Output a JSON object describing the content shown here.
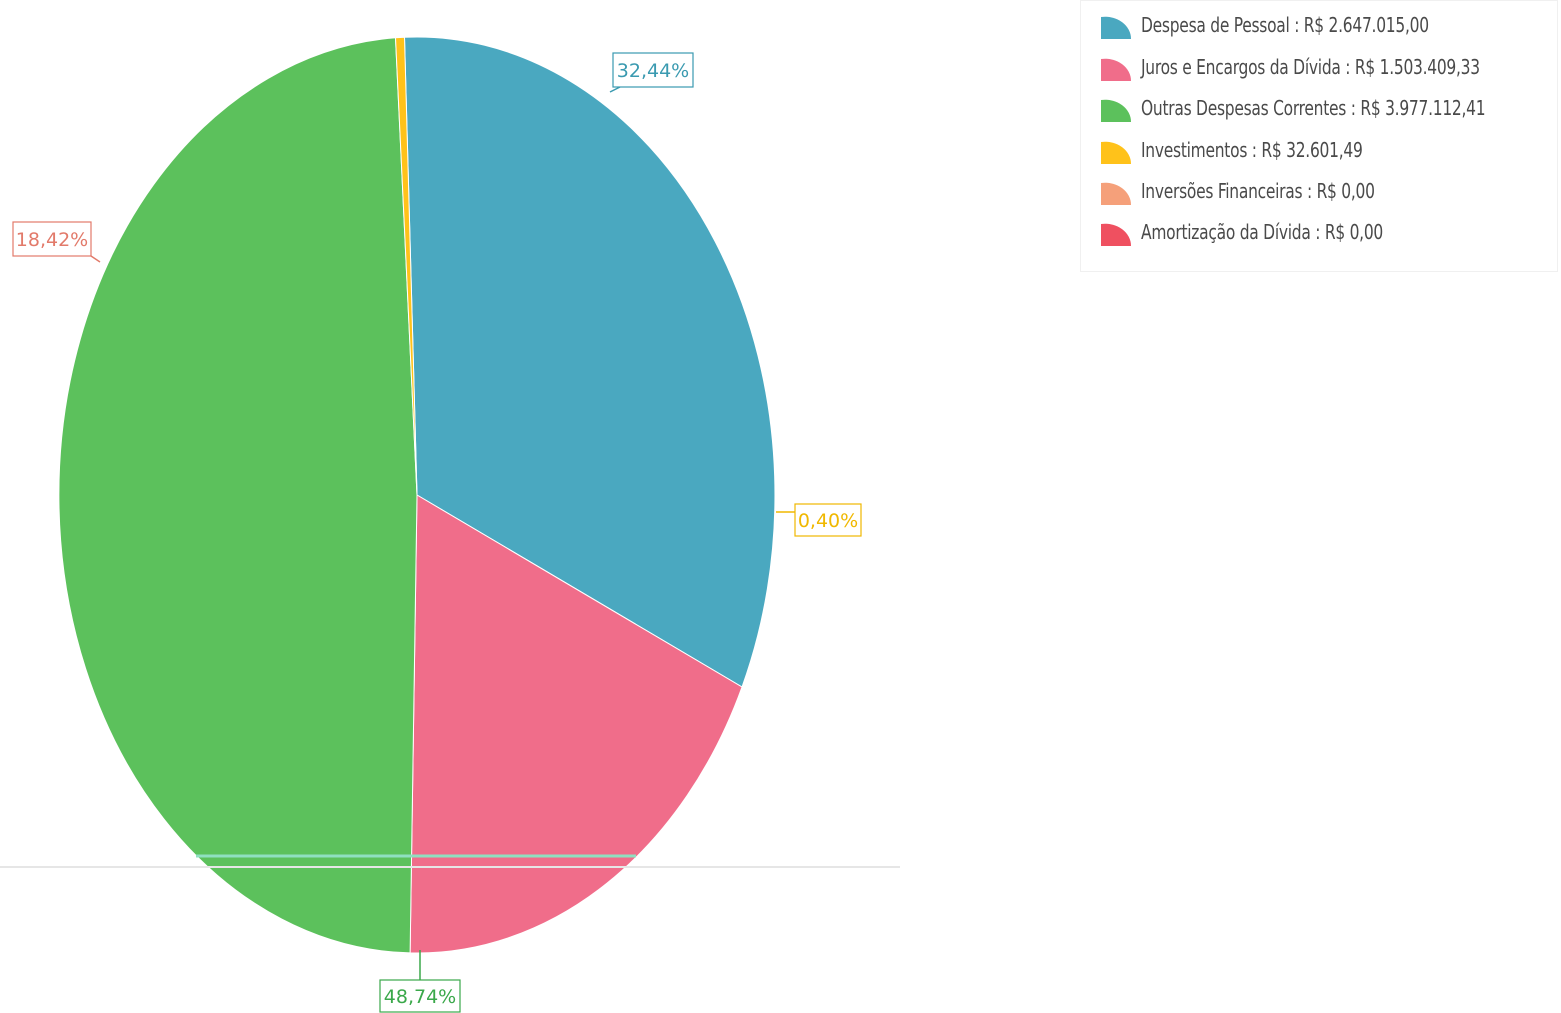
{
  "chart_data": {
    "type": "pie",
    "title": "",
    "slices": [
      {
        "name": "Despesa de Pessoal",
        "value_text": "R$ 2.647.015,00",
        "value": 2647015.0,
        "percent": 32.44,
        "percent_label": "32,44%",
        "color": "#4aa8c0"
      },
      {
        "name": "Juros e Encargos da Dívida",
        "value_text": "R$ 1.503.409,33",
        "value": 1503409.33,
        "percent": 18.42,
        "percent_label": "18,42%",
        "color": "#f06d8a"
      },
      {
        "name": "Outras Despesas Correntes",
        "value_text": "R$ 3.977.112,41",
        "value": 3977112.41,
        "percent": 48.74,
        "percent_label": "48,74%",
        "color": "#5cc15c"
      },
      {
        "name": "Investimentos",
        "value_text": "R$ 32.601,49",
        "value": 32601.49,
        "percent": 0.4,
        "percent_label": "0,40%",
        "color": "#ffc21a"
      },
      {
        "name": "Inversões Financeiras",
        "value_text": "R$ 0,00",
        "value": 0,
        "percent": 0,
        "percent_label": "",
        "color": "#f5a07a"
      },
      {
        "name": "Amortização da Dívida",
        "value_text": "R$ 0,00",
        "value": 0,
        "percent": 0,
        "percent_label": "",
        "color": "#ef5060"
      }
    ],
    "label_colors": [
      "#3a9ab0",
      "#e27a6a",
      "#3aa84a",
      "#f0b800"
    ],
    "legend": {
      "placement": "top-right",
      "items": [
        "Despesa de Pessoal : R$ 2.647.015,00",
        "Juros e Encargos da Dívida : R$ 1.503.409,33",
        "Outras Despesas Correntes : R$ 3.977.112,41",
        "Investimentos : R$ 32.601,49",
        "Inversões Financeiras : R$ 0,00",
        "Amortização da Dívida : R$ 0,00"
      ]
    }
  }
}
